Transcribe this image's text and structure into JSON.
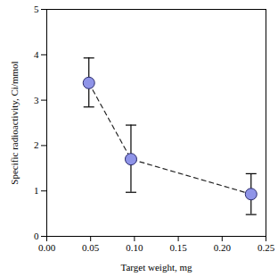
{
  "chart_data": {
    "type": "scatter",
    "x_label": "Target weight, mg",
    "y_label": "Specific radioactivity, Ci/mmol",
    "x": [
      0.048,
      0.096,
      0.233
    ],
    "values": [
      3.38,
      1.7,
      0.93
    ],
    "error_bars": [
      {
        "low": 2.85,
        "high": 3.93
      },
      {
        "low": 0.97,
        "high": 2.45
      },
      {
        "low": 0.48,
        "high": 1.38
      }
    ],
    "color": "#8f94e8",
    "marker": "circle",
    "line_style": "dashed",
    "xlim": [
      0,
      0.25
    ],
    "xticks": [
      {
        "value": 0,
        "label": "0.00"
      },
      {
        "value": 0.05,
        "label": "0.05"
      },
      {
        "value": 0.1,
        "label": "0.10"
      },
      {
        "value": 0.15,
        "label": "0.15"
      },
      {
        "value": 0.2,
        "label": "0.20"
      },
      {
        "value": 0.25,
        "label": "0.25"
      }
    ],
    "ylim": [
      0,
      5
    ],
    "yticks": [
      0,
      1,
      2,
      3,
      4,
      5
    ],
    "grid": false
  }
}
